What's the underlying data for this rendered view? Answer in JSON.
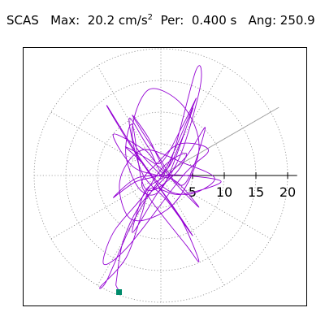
{
  "header": {
    "station": "SCAS",
    "max_label": "Max:",
    "max_value": "20.2",
    "max_unit": "cm/s",
    "max_exp": "2",
    "per_label": "Per:",
    "per_value": "0.400 s",
    "ang_label": "Ang:",
    "ang_value": "250.9"
  },
  "chart_data": {
    "type": "polar-trace",
    "title": "SCAS   Max:  20.2 cm/s2  Per:  0.400 s   Ang: 250.9",
    "radial_ticks": [
      5,
      10,
      15,
      20
    ],
    "radial_tick_labels": [
      "5",
      "10",
      "15",
      "20"
    ],
    "rmax": 21.5,
    "spoke_angles_deg": [
      0,
      30,
      60,
      90,
      120,
      150,
      180,
      210,
      240,
      270,
      300,
      330
    ],
    "max_angle_deg": 250.9,
    "max_amplitude": 20.2,
    "max_ray_angle_screen_deg": 30,
    "trace_color": "#9400d3",
    "marker_color": "#008b6b",
    "grid": true,
    "trace_points": [
      [
        0.0,
        0.0
      ],
      [
        -4.5,
        6.0
      ],
      [
        -2.0,
        13.5
      ],
      [
        3.5,
        11.0
      ],
      [
        6.0,
        4.0
      ],
      [
        2.0,
        -4.5
      ],
      [
        -4.5,
        -7.0
      ],
      [
        -6.5,
        -1.0
      ],
      [
        -3.0,
        4.0
      ],
      [
        3.5,
        2.0
      ],
      [
        8.5,
        -0.5
      ],
      [
        4.0,
        -3.0
      ],
      [
        -1.0,
        -0.5
      ],
      [
        -8.5,
        11.0
      ],
      [
        -4.0,
        3.5
      ],
      [
        2.0,
        -5.0
      ],
      [
        5.0,
        -9.5
      ],
      [
        1.0,
        -4.0
      ],
      [
        -3.0,
        0.5
      ],
      [
        -5.0,
        9.0
      ],
      [
        -2.0,
        4.5
      ],
      [
        1.0,
        1.0
      ],
      [
        5.5,
        16.5
      ],
      [
        6.2,
        14.0
      ],
      [
        3.0,
        3.0
      ],
      [
        -1.0,
        -3.5
      ],
      [
        -4.5,
        -9.0
      ],
      [
        -2.5,
        -2.5
      ],
      [
        0.5,
        0.5
      ],
      [
        -5.5,
        4.5
      ],
      [
        -3.0,
        2.0
      ],
      [
        0.5,
        -3.0
      ],
      [
        3.5,
        -7.5
      ],
      [
        6.0,
        -13.5
      ],
      [
        4.0,
        -11.0
      ],
      [
        -1.5,
        -4.0
      ],
      [
        -3.0,
        -1.0
      ],
      [
        -0.5,
        2.0
      ],
      [
        3.0,
        5.0
      ],
      [
        7.5,
        4.0
      ],
      [
        3.5,
        0.0
      ],
      [
        -5.0,
        -11.0
      ],
      [
        -9.0,
        -14.0
      ],
      [
        -7.5,
        -9.0
      ],
      [
        -3.0,
        -3.5
      ],
      [
        0.5,
        1.5
      ],
      [
        4.0,
        3.5
      ],
      [
        2.0,
        0.0
      ],
      [
        -2.5,
        -2.0
      ],
      [
        -4.5,
        8.0
      ],
      [
        -5.5,
        3.0
      ],
      [
        -3.0,
        -2.5
      ],
      [
        0.5,
        -1.5
      ],
      [
        5.0,
        10.5
      ],
      [
        3.0,
        5.0
      ],
      [
        0.5,
        0.5
      ],
      [
        -4.0,
        -1.0
      ],
      [
        -7.5,
        -3.5
      ],
      [
        -4.0,
        -0.5
      ],
      [
        0.0,
        0.0
      ],
      [
        4.0,
        0.0
      ],
      [
        9.5,
        -1.0
      ],
      [
        3.0,
        -3.0
      ],
      [
        -1.5,
        -2.0
      ],
      [
        -3.0,
        -6.0
      ],
      [
        -5.5,
        -13.0
      ],
      [
        -9.5,
        -17.5
      ],
      [
        -8.5,
        -16.5
      ],
      [
        -5.0,
        -8.5
      ],
      [
        -2.5,
        -4.0
      ],
      [
        1.0,
        1.5
      ],
      [
        5.5,
        12.0
      ],
      [
        3.5,
        8.0
      ],
      [
        0.0,
        2.0
      ],
      [
        -2.5,
        4.0
      ],
      [
        -7.5,
        6.5
      ],
      [
        -4.5,
        1.5
      ],
      [
        -0.5,
        0.0
      ],
      [
        2.5,
        -1.0
      ],
      [
        6.0,
        -5.0
      ],
      [
        3.0,
        -2.0
      ],
      [
        0.5,
        1.0
      ],
      [
        -2.0,
        6.0
      ],
      [
        -4.5,
        9.5
      ],
      [
        -1.0,
        4.0
      ],
      [
        3.5,
        -1.5
      ],
      [
        7.0,
        7.5
      ],
      [
        4.0,
        3.0
      ],
      [
        0.0,
        -1.0
      ],
      [
        -3.5,
        -5.0
      ],
      [
        -6.0,
        -10.5
      ],
      [
        -7.0,
        -16.5
      ],
      [
        -7.0,
        -17.5
      ],
      [
        -6.5,
        -18.3
      ]
    ],
    "end_marker": [
      -6.6,
      -18.4
    ]
  }
}
